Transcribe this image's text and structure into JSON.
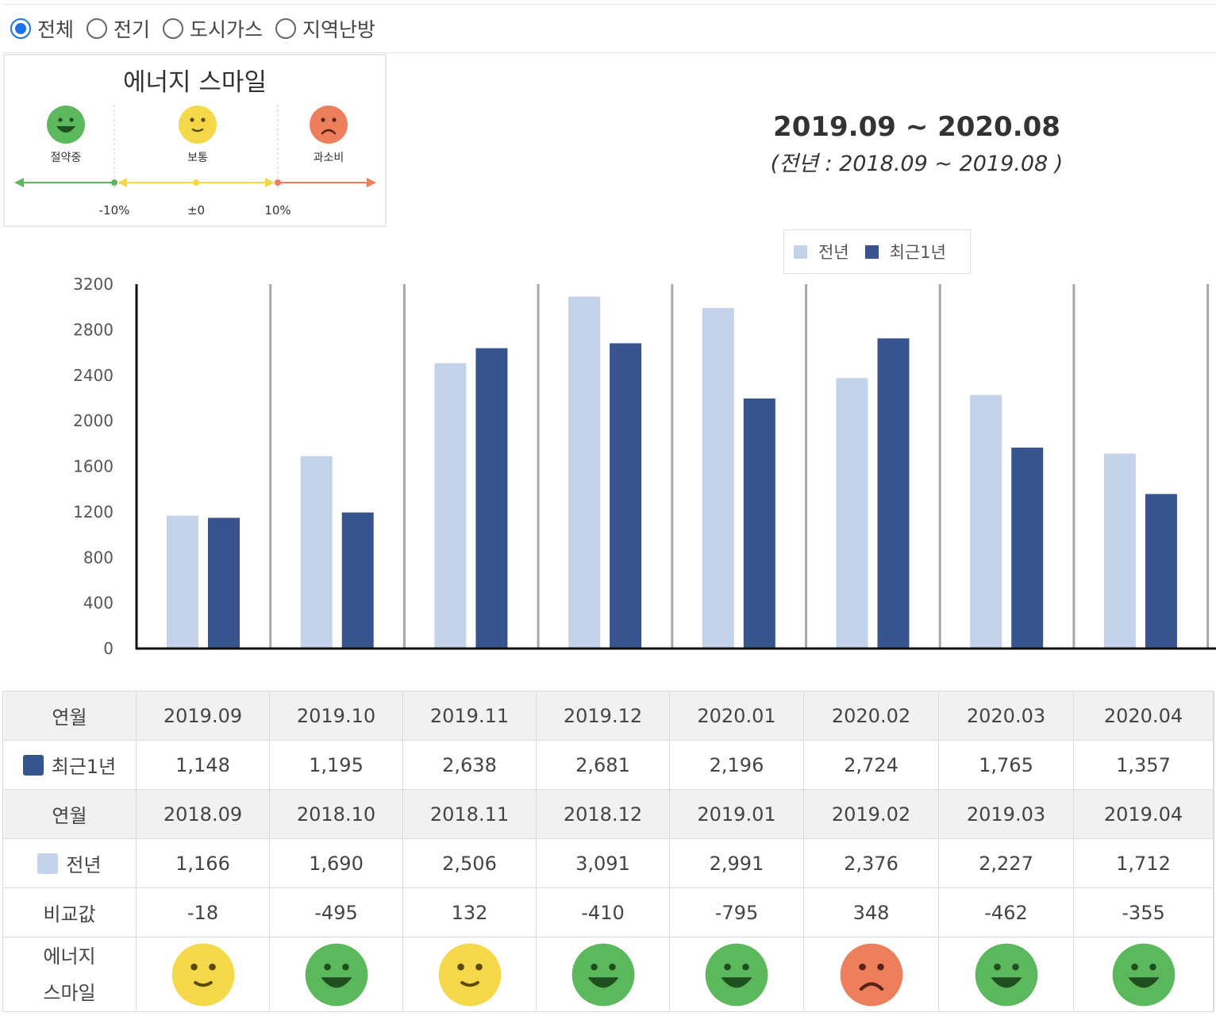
{
  "filter": {
    "options": [
      {
        "label": "전체",
        "checked": true
      },
      {
        "label": "전기",
        "checked": false
      },
      {
        "label": "도시가스",
        "checked": false
      },
      {
        "label": "지역난방",
        "checked": false
      }
    ]
  },
  "smile_legend": {
    "title": "에너지 스마일",
    "levels": [
      {
        "label": "절약중",
        "mood": "happy",
        "color": "#5cb85c"
      },
      {
        "label": "보통",
        "mood": "neutral",
        "color": "#f5d84a"
      },
      {
        "label": "과소비",
        "mood": "sad",
        "color": "#ee7f5c"
      }
    ],
    "scale": [
      "-10%",
      "±0",
      "10%"
    ]
  },
  "header": {
    "period": "2019.09 ~ 2020.08",
    "prev_period": "(전년 : 2018.09 ~ 2019.08 )"
  },
  "chart_data": {
    "type": "bar",
    "categories": [
      "2019.09",
      "2019.10",
      "2019.11",
      "2019.12",
      "2020.01",
      "2020.02",
      "2020.03",
      "2020.04"
    ],
    "series": [
      {
        "name": "전년",
        "color": "#c5d3ea",
        "values": [
          1166,
          1690,
          2506,
          3091,
          2991,
          2376,
          2227,
          1712
        ]
      },
      {
        "name": "최근1년",
        "color": "#38548f",
        "values": [
          1148,
          1195,
          2638,
          2681,
          2196,
          2724,
          1765,
          1357
        ]
      }
    ],
    "yticks": [
      "0",
      "400",
      "800",
      "1200",
      "1600",
      "2000",
      "2400",
      "2800",
      "3200"
    ],
    "ylim": [
      0,
      3200
    ],
    "legend": [
      "전년",
      "최근1년"
    ]
  },
  "table": {
    "recent_header": "연월",
    "recent_label": "최근1년",
    "recent_months": [
      "2019.09",
      "2019.10",
      "2019.11",
      "2019.12",
      "2020.01",
      "2020.02",
      "2020.03",
      "2020.04"
    ],
    "recent_values": [
      "1,148",
      "1,195",
      "2,638",
      "2,681",
      "2,196",
      "2,724",
      "1,765",
      "1,357"
    ],
    "prev_header": "연월",
    "prev_label": "전년",
    "prev_months": [
      "2018.09",
      "2018.10",
      "2018.11",
      "2018.12",
      "2019.01",
      "2019.02",
      "2019.03",
      "2019.04"
    ],
    "prev_values": [
      "1,166",
      "1,690",
      "2,506",
      "3,091",
      "2,991",
      "2,376",
      "2,227",
      "1,712"
    ],
    "diff_label": "비교값",
    "diff_values": [
      "-18",
      "-495",
      "132",
      "-410",
      "-795",
      "348",
      "-462",
      "-355"
    ],
    "smile_label_1": "에너지",
    "smile_label_2": "스마일",
    "smiles": [
      "neutral",
      "happy",
      "neutral",
      "happy",
      "happy",
      "sad",
      "happy",
      "happy"
    ]
  },
  "colors": {
    "happy": "#5cb85c",
    "neutral": "#f5d84a",
    "sad": "#ee7f5c",
    "prev": "#c5d3ea",
    "recent": "#38548f"
  }
}
